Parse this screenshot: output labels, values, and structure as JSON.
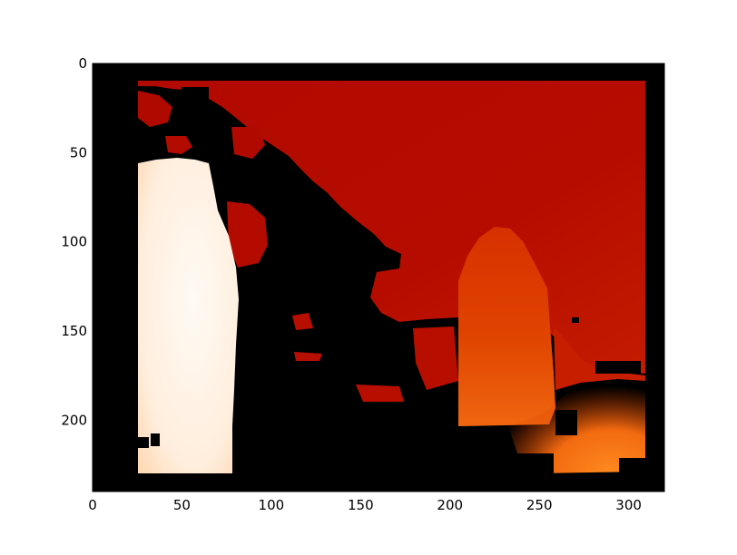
{
  "chart_data": {
    "type": "heatmap",
    "title": "",
    "xlabel": "",
    "ylabel": "",
    "xlim": [
      0,
      320
    ],
    "ylim": [
      240,
      0
    ],
    "y_inverted": true,
    "grid": false,
    "colormap": "hot",
    "colorbar": false,
    "x_ticks": [
      0,
      50,
      100,
      150,
      200,
      250,
      300
    ],
    "y_ticks": [
      0,
      50,
      100,
      150,
      200
    ],
    "colors": {
      "background": "#000000",
      "dark_red": "#b00a00",
      "deep_red": "#c21800",
      "red_orange": "#dc3a00",
      "orange": "#ee6010",
      "pale": "#fff0e2"
    },
    "regions": [
      {
        "name": "upper field",
        "level": 0.3
      },
      {
        "name": "right field",
        "level": 0.34
      },
      {
        "name": "left bright column",
        "level": 0.97
      },
      {
        "name": "center orange column",
        "level": 0.48
      },
      {
        "name": "bottom right glow",
        "level": 0.58
      },
      {
        "name": "no data",
        "level": 0.0
      }
    ]
  }
}
